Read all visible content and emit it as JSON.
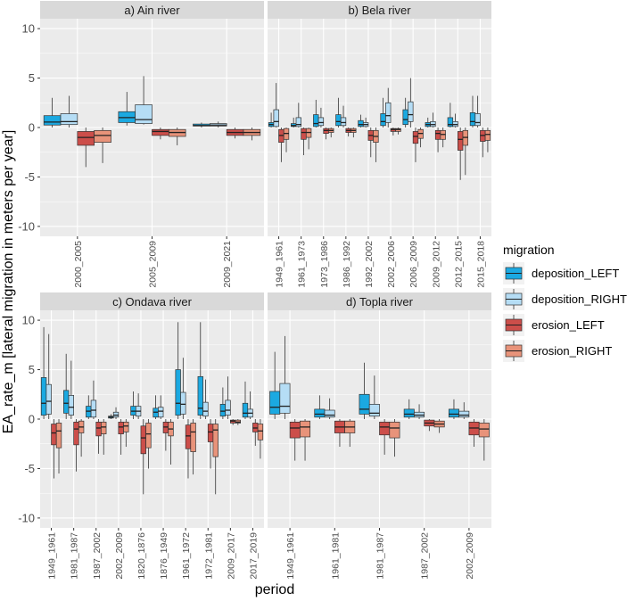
{
  "colors": {
    "deposition_LEFT": "#1BA9E1",
    "deposition_RIGHT": "#B5DDF5",
    "erosion_LEFT": "#CC4E4A",
    "erosion_RIGHT": "#E8937A",
    "panel_bg": "#EBEBEB",
    "strip_bg": "#D9D9D9",
    "grid": "#FFFFFF"
  },
  "chart_data": {
    "type": "boxplot",
    "xlabel": "period",
    "ylabel": "EA_rate_m [lateral migration in meters per year]",
    "ylim": [
      -11,
      11
    ],
    "yticks": [
      -10,
      -5,
      0,
      5,
      10
    ],
    "grid": true,
    "legend": {
      "title": "migration",
      "placement": "right",
      "entries": [
        "deposition_LEFT",
        "deposition_RIGHT",
        "erosion_LEFT",
        "erosion_RIGHT"
      ]
    },
    "panels": [
      {
        "title": "a) Ain river",
        "periods": [
          "2000_2005",
          "2005_2009",
          "2009_2021"
        ],
        "boxes": [
          [
            [
              0.0,
              0.25,
              0.55,
              1.2,
              3.0
            ],
            [
              0.0,
              0.3,
              0.6,
              1.4,
              3.2
            ],
            [
              -4.0,
              -1.8,
              -1.0,
              -0.4,
              0.0
            ],
            [
              -3.6,
              -1.5,
              -0.8,
              -0.3,
              0.0
            ]
          ],
          [
            [
              0.2,
              0.5,
              1.0,
              1.6,
              3.6
            ],
            [
              0.3,
              0.4,
              0.8,
              2.3,
              5.2
            ],
            [
              -1.2,
              -0.8,
              -0.4,
              -0.2,
              0.0
            ],
            [
              -1.8,
              -0.9,
              -0.5,
              -0.2,
              0.0
            ]
          ],
          [
            [
              0.0,
              0.15,
              0.2,
              0.35,
              0.5
            ],
            [
              0.0,
              0.15,
              0.25,
              0.4,
              0.6
            ],
            [
              -1.1,
              -0.8,
              -0.5,
              -0.2,
              0.0
            ],
            [
              -1.3,
              -0.8,
              -0.5,
              -0.2,
              0.0
            ]
          ]
        ]
      },
      {
        "title": "b) Bela river",
        "periods": [
          "1949_1961",
          "1961_1973",
          "1973_1986",
          "1986_1992",
          "1992_2002",
          "2002_2006",
          "2006_2009",
          "2009_2012",
          "2012_2015",
          "2015_2018"
        ],
        "boxes": [
          [
            [
              0.0,
              0.1,
              0.3,
              0.5,
              1.5
            ],
            [
              0.0,
              0.1,
              0.6,
              1.8,
              4.5
            ],
            [
              -3.5,
              -1.5,
              -0.8,
              -0.2,
              0.0
            ],
            [
              -2.5,
              -1.2,
              -0.6,
              -0.1,
              0.0
            ]
          ],
          [
            [
              0.0,
              0.1,
              0.2,
              0.4,
              1.0
            ],
            [
              0.0,
              0.1,
              0.3,
              1.0,
              2.5
            ],
            [
              -2.8,
              -1.2,
              -0.5,
              -0.1,
              0.0
            ],
            [
              -2.2,
              -1.0,
              -0.5,
              -0.1,
              0.0
            ]
          ],
          [
            [
              0.0,
              0.1,
              0.4,
              1.3,
              2.8
            ],
            [
              0.0,
              0.2,
              0.5,
              1.0,
              2.0
            ],
            [
              -1.2,
              -0.6,
              -0.3,
              -0.1,
              0.0
            ],
            [
              -1.0,
              -0.5,
              -0.3,
              -0.1,
              0.0
            ]
          ],
          [
            [
              0.0,
              0.2,
              0.6,
              1.3,
              3.0
            ],
            [
              0.0,
              0.2,
              0.5,
              1.0,
              2.2
            ],
            [
              -0.9,
              -0.5,
              -0.3,
              -0.1,
              0.0
            ],
            [
              -1.0,
              -0.5,
              -0.3,
              -0.1,
              0.0
            ]
          ],
          [
            [
              0.0,
              0.1,
              0.3,
              0.7,
              1.3
            ],
            [
              0.0,
              0.1,
              0.3,
              0.5,
              1.0
            ],
            [
              -3.0,
              -1.3,
              -0.8,
              -0.3,
              0.0
            ],
            [
              -3.5,
              -1.5,
              -0.9,
              -0.3,
              0.0
            ]
          ],
          [
            [
              0.0,
              0.2,
              0.6,
              1.4,
              3.0
            ],
            [
              0.0,
              0.5,
              1.2,
              2.5,
              4.0
            ],
            [
              -0.8,
              -0.4,
              -0.2,
              -0.1,
              0.0
            ],
            [
              -0.7,
              -0.4,
              -0.2,
              -0.1,
              0.0
            ]
          ],
          [
            [
              0.0,
              0.3,
              0.8,
              1.8,
              3.0
            ],
            [
              0.0,
              0.6,
              1.3,
              2.6,
              5.0
            ],
            [
              -3.5,
              -1.6,
              -0.9,
              -0.4,
              0.0
            ],
            [
              -2.0,
              -1.1,
              -0.6,
              -0.2,
              0.0
            ]
          ],
          [
            [
              0.0,
              0.1,
              0.3,
              0.5,
              1.0
            ],
            [
              0.0,
              0.1,
              0.3,
              0.6,
              1.5
            ],
            [
              -2.5,
              -1.2,
              -0.6,
              -0.3,
              0.0
            ],
            [
              -2.0,
              -1.2,
              -0.7,
              -0.3,
              0.0
            ]
          ],
          [
            [
              0.0,
              0.1,
              0.3,
              1.0,
              2.5
            ],
            [
              0.0,
              0.1,
              0.3,
              0.6,
              1.4
            ],
            [
              -5.3,
              -2.3,
              -1.2,
              -0.4,
              0.0
            ],
            [
              -4.8,
              -1.8,
              -1.0,
              -0.3,
              0.0
            ]
          ],
          [
            [
              0.0,
              0.2,
              0.6,
              1.5,
              3.2
            ],
            [
              0.0,
              0.2,
              0.5,
              1.4,
              3.2
            ],
            [
              -3.0,
              -1.4,
              -0.8,
              -0.3,
              0.0
            ],
            [
              -2.5,
              -1.3,
              -0.7,
              -0.3,
              0.0
            ]
          ]
        ]
      },
      {
        "title": "c) Ondava river",
        "periods": [
          "1949_1961",
          "1981_1987",
          "1987_2002",
          "2002_2009",
          "1820_1876",
          "1876_1949",
          "1961_1972",
          "1972_1981",
          "2009_2017",
          "2017_2019"
        ],
        "boxes": [
          [
            [
              0.0,
              0.4,
              1.6,
              4.2,
              9.3
            ],
            [
              0.0,
              0.5,
              1.8,
              3.5,
              8.6
            ],
            [
              -6.0,
              -2.6,
              -1.4,
              -0.5,
              0.0
            ],
            [
              -5.5,
              -2.9,
              -1.2,
              -0.4,
              0.0
            ]
          ],
          [
            [
              0.0,
              0.6,
              1.6,
              2.9,
              6.6
            ],
            [
              0.0,
              0.4,
              1.2,
              2.4,
              5.9
            ],
            [
              -5.3,
              -2.6,
              -1.0,
              -0.3,
              0.0
            ],
            [
              -3.8,
              -1.4,
              -0.8,
              -0.2,
              0.0
            ]
          ],
          [
            [
              0.0,
              0.2,
              0.8,
              1.3,
              2.4
            ],
            [
              0.0,
              0.2,
              0.9,
              1.9,
              3.9
            ],
            [
              -3.5,
              -1.7,
              -0.9,
              -0.3,
              0.0
            ],
            [
              -3.6,
              -1.5,
              -0.8,
              -0.3,
              0.0
            ]
          ],
          [
            [
              0.0,
              0.1,
              0.2,
              0.3,
              0.5
            ],
            [
              0.0,
              0.2,
              0.4,
              0.7,
              1.2
            ],
            [
              -3.6,
              -1.5,
              -0.8,
              -0.3,
              0.0
            ],
            [
              -2.8,
              -1.3,
              -0.7,
              -0.3,
              0.0
            ]
          ],
          [
            [
              0.0,
              0.4,
              0.8,
              1.3,
              2.8
            ],
            [
              0.0,
              0.3,
              0.8,
              1.3,
              2.6
            ],
            [
              -7.6,
              -3.5,
              -1.9,
              -0.7,
              0.0
            ],
            [
              -5.0,
              -2.9,
              -1.5,
              -0.4,
              0.0
            ]
          ],
          [
            [
              0.0,
              0.2,
              0.7,
              1.1,
              2.4
            ],
            [
              0.0,
              0.2,
              0.8,
              1.2,
              2.4
            ],
            [
              -3.2,
              -1.4,
              -0.8,
              -0.3,
              0.0
            ],
            [
              -4.6,
              -1.7,
              -1.0,
              -0.3,
              0.0
            ]
          ],
          [
            [
              0.0,
              0.4,
              1.6,
              5.0,
              9.8
            ],
            [
              0.0,
              0.5,
              1.5,
              2.7,
              6.2
            ],
            [
              -6.0,
              -3.0,
              -1.7,
              -0.6,
              0.0
            ],
            [
              -5.6,
              -3.3,
              -1.3,
              -0.4,
              0.0
            ]
          ],
          [
            [
              0.0,
              0.4,
              1.1,
              4.3,
              9.8
            ],
            [
              0.0,
              0.3,
              0.8,
              1.7,
              4.0
            ],
            [
              -5.0,
              -2.3,
              -1.3,
              -0.5,
              0.0
            ],
            [
              -7.6,
              -3.8,
              -1.1,
              -0.5,
              0.0
            ]
          ],
          [
            [
              0.0,
              0.3,
              0.8,
              1.5,
              3.2
            ],
            [
              0.0,
              0.4,
              0.9,
              1.9,
              4.3
            ],
            [
              -0.6,
              -0.4,
              -0.2,
              -0.1,
              0.0
            ],
            [
              -0.6,
              -0.4,
              -0.3,
              -0.1,
              0.0
            ]
          ],
          [
            [
              0.0,
              0.2,
              0.6,
              1.6,
              3.8
            ],
            [
              0.0,
              0.2,
              0.6,
              1.0,
              2.8
            ],
            [
              -2.7,
              -1.3,
              -0.9,
              -0.4,
              0.0
            ],
            [
              -4.0,
              -2.1,
              -1.2,
              -0.5,
              0.0
            ]
          ]
        ]
      },
      {
        "title": "d) Topla river",
        "periods": [
          "1949_1961",
          "1961_1981",
          "1981_1987",
          "1987_2002",
          "2002_2009"
        ],
        "boxes": [
          [
            [
              0.0,
              0.5,
              1.2,
              2.8,
              6.8
            ],
            [
              0.0,
              0.6,
              1.3,
              3.6,
              8.4
            ],
            [
              -4.2,
              -1.9,
              -0.9,
              -0.3,
              0.0
            ],
            [
              -4.2,
              -1.8,
              -0.8,
              -0.2,
              0.0
            ]
          ],
          [
            [
              0.0,
              0.2,
              0.5,
              1.0,
              2.4
            ],
            [
              0.0,
              0.2,
              0.4,
              0.9,
              2.1
            ],
            [
              -2.8,
              -1.4,
              -0.8,
              -0.2,
              0.0
            ],
            [
              -2.8,
              -1.4,
              -0.8,
              -0.2,
              0.0
            ]
          ],
          [
            [
              0.0,
              0.5,
              1.0,
              2.5,
              5.7
            ],
            [
              0.0,
              0.3,
              0.6,
              1.5,
              4.4
            ],
            [
              -3.6,
              -1.6,
              -0.8,
              -0.3,
              0.0
            ],
            [
              -3.8,
              -1.9,
              -0.9,
              -0.3,
              0.0
            ]
          ],
          [
            [
              0.0,
              0.2,
              0.5,
              1.0,
              2.0
            ],
            [
              0.0,
              0.2,
              0.4,
              0.7,
              1.5
            ],
            [
              -1.2,
              -0.7,
              -0.4,
              -0.1,
              0.0
            ],
            [
              -1.4,
              -0.8,
              -0.5,
              -0.2,
              0.0
            ]
          ],
          [
            [
              0.0,
              0.2,
              0.5,
              1.0,
              2.0
            ],
            [
              0.0,
              0.2,
              0.4,
              0.8,
              1.7
            ],
            [
              -2.8,
              -1.6,
              -0.9,
              -0.3,
              0.0
            ],
            [
              -4.2,
              -1.8,
              -1.0,
              -0.4,
              0.0
            ]
          ]
        ]
      }
    ]
  }
}
